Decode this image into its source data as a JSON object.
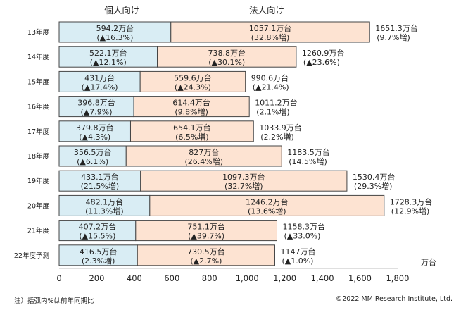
{
  "chart_data": {
    "type": "bar",
    "stacked": true,
    "orientation": "horizontal",
    "column_headers": [
      "個人向け",
      "法人向け"
    ],
    "categories": [
      "13年度",
      "14年度",
      "15年度",
      "16年度",
      "17年度",
      "18年度",
      "19年度",
      "20年度",
      "21年度",
      "22年度予測"
    ],
    "series": [
      {
        "name": "個人向け",
        "color": "#d9edf4",
        "values": [
          594.2,
          522.1,
          431,
          396.8,
          379.8,
          356.5,
          433.1,
          482.1,
          407.2,
          416.5
        ],
        "labels": [
          "594.2万台",
          "522.1万台",
          "431万台",
          "396.8万台",
          "379.8万台",
          "356.5万台",
          "433.1万台",
          "482.1万台",
          "407.2万台",
          "416.5万台"
        ],
        "sublabels": [
          "(▲16.3%)",
          "(▲12.1%)",
          "(▲17.4%)",
          "(▲7.9%)",
          "(▲4.3%)",
          "(▲6.1%)",
          "(21.5%増)",
          "(11.3%増)",
          "(▲15.5%)",
          "(2.3%増)"
        ]
      },
      {
        "name": "法人向け",
        "color": "#fde3d2",
        "values": [
          1057.1,
          738.8,
          559.6,
          614.4,
          654.1,
          827,
          1097.3,
          1246.2,
          751.1,
          730.5
        ],
        "labels": [
          "1057.1万台",
          "738.8万台",
          "559.6万台",
          "614.4万台",
          "654.1万台",
          "827万台",
          "1097.3万台",
          "1246.2万台",
          "751.1万台",
          "730.5万台"
        ],
        "sublabels": [
          "(32.8%増)",
          "(▲30.1%)",
          "(▲24.3%)",
          "(9.8%増)",
          "(6.5%増)",
          "(26.4%増)",
          "(32.7%増)",
          "(13.6%増)",
          "(▲39.7%)",
          "(▲2.7%)"
        ]
      }
    ],
    "totals": {
      "values": [
        1651.3,
        1260.9,
        990.6,
        1011.2,
        1033.9,
        1183.5,
        1530.4,
        1728.3,
        1158.3,
        1147
      ],
      "labels": [
        "1651.3万台",
        "1260.9万台",
        "990.6万台",
        "1011.2万台",
        "1033.9万台",
        "1183.5万台",
        "1530.4万台",
        "1728.3万台",
        "1158.3万台",
        "1147万台"
      ],
      "sublabels": [
        "(9.7%増)",
        "(▲23.6%)",
        "(▲21.4%)",
        "(2.1%増)",
        "(2.2%増)",
        "(14.5%増)",
        "(29.3%増)",
        "(12.9%増)",
        "(▲33.0%)",
        "(▲1.0%)"
      ]
    },
    "x_ticks": [
      0,
      200,
      400,
      600,
      800,
      1000,
      1200,
      1400,
      1600,
      1800
    ],
    "x_tick_labels": [
      "0",
      "200",
      "400",
      "600",
      "800",
      "1,000",
      "1,200",
      "1,400",
      "1,600",
      "1,800"
    ],
    "x_unit": "万台",
    "xlim": [
      0,
      1800
    ],
    "grid": false,
    "bar_border_color": "#444444"
  },
  "footnote": "注）括弧内%は前年同期比",
  "copyright": "©2022 MM Research Institute, Ltd."
}
